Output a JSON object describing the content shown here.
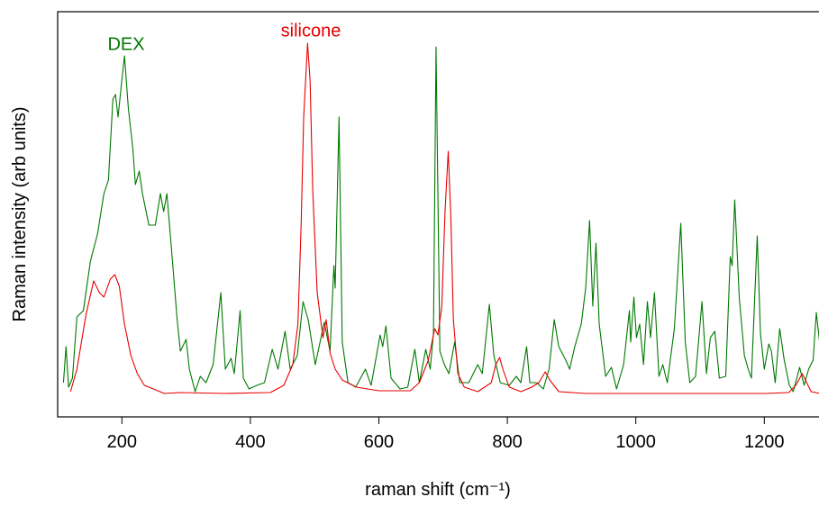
{
  "chart_data": {
    "type": "line",
    "xlabel": "raman shift (cm⁻¹)",
    "ylabel": "Raman intensity (arb units)",
    "annotations": [
      "DEX",
      "silicone"
    ],
    "xlim": [
      100,
      1286
    ],
    "ylim": [
      0,
      450
    ],
    "xticks": [
      200,
      400,
      600,
      800,
      1000,
      1200
    ],
    "series": [
      {
        "name": "DEX",
        "color": "#007800",
        "x": [
          109,
          113,
          117,
          123,
          130,
          140,
          151,
          162,
          172,
          179,
          186,
          190,
          194,
          199,
          204,
          210,
          217,
          221,
          227,
          232,
          242,
          252,
          260,
          265,
          270,
          277,
          286,
          291,
          300,
          305,
          314,
          322,
          331,
          342,
          354,
          361,
          370,
          375,
          384,
          389,
          398,
          410,
          422,
          434,
          443,
          454,
          462,
          473,
          482,
          490,
          501,
          515,
          524,
          530,
          532,
          538,
          543,
          552,
          564,
          579,
          588,
          602,
          606,
          611,
          619,
          633,
          645,
          656,
          663,
          673,
          680,
          685,
          689,
          695,
          702,
          709,
          718,
          726,
          740,
          754,
          761,
          772,
          779,
          789,
          803,
          814,
          821,
          830,
          835,
          846,
          856,
          865,
          873,
          880,
          891,
          897,
          905,
          915,
          922,
          928,
          933,
          938,
          943,
          953,
          962,
          970,
          981,
          990,
          992,
          997,
          1001,
          1006,
          1012,
          1018,
          1023,
          1029,
          1036,
          1042,
          1049,
          1060,
          1070,
          1077,
          1084,
          1093,
          1103,
          1110,
          1116,
          1123,
          1130,
          1140,
          1147,
          1150,
          1154,
          1161,
          1169,
          1175,
          1180,
          1189,
          1194,
          1200,
          1207,
          1211,
          1217,
          1224,
          1231,
          1239,
          1245,
          1255,
          1262,
          1269,
          1276,
          1281,
          1286
        ],
        "values": [
          38,
          78,
          33,
          43,
          111,
          118,
          173,
          203,
          248,
          263,
          353,
          358,
          333,
          368,
          401,
          343,
          298,
          258,
          273,
          248,
          213,
          213,
          248,
          228,
          248,
          188,
          108,
          73,
          86,
          53,
          28,
          45,
          38,
          58,
          138,
          53,
          65,
          48,
          118,
          43,
          31,
          35,
          38,
          75,
          53,
          95,
          53,
          68,
          128,
          108,
          58,
          105,
          73,
          168,
          143,
          333,
          83,
          38,
          33,
          53,
          35,
          91,
          78,
          101,
          43,
          31,
          33,
          75,
          38,
          75,
          53,
          93,
          411,
          73,
          58,
          48,
          83,
          38,
          38,
          58,
          48,
          125,
          68,
          38,
          35,
          45,
          38,
          78,
          38,
          38,
          31,
          53,
          108,
          78,
          63,
          53,
          78,
          103,
          143,
          218,
          123,
          193,
          103,
          45,
          55,
          31,
          58,
          118,
          83,
          133,
          88,
          103,
          58,
          128,
          88,
          138,
          45,
          58,
          38,
          98,
          215,
          83,
          38,
          45,
          128,
          48,
          88,
          95,
          43,
          45,
          178,
          168,
          241,
          133,
          68,
          53,
          43,
          201,
          93,
          53,
          81,
          73,
          38,
          98,
          63,
          35,
          28,
          55,
          35,
          53,
          63,
          116,
          83
        ]
      },
      {
        "name": "silicone",
        "color": "#e60000",
        "x": [
          120,
          130,
          144,
          156,
          165,
          172,
          182,
          189,
          196,
          204,
          214,
          224,
          235,
          249,
          266,
          291,
          361,
          431,
          452,
          466,
          474,
          479,
          483,
          489,
          493,
          497,
          504,
          513,
          518,
          524,
          532,
          543,
          565,
          600,
          649,
          663,
          677,
          687,
          692,
          698,
          703,
          708,
          712,
          716,
          723,
          733,
          754,
          775,
          782,
          788,
          793,
          803,
          821,
          838,
          849,
          859,
          866,
          880,
          922,
          1063,
          1203,
          1238,
          1249,
          1259,
          1266,
          1273,
          1286
        ],
        "values": [
          28,
          53,
          113,
          151,
          138,
          133,
          153,
          158,
          145,
          103,
          68,
          48,
          35,
          31,
          26,
          27,
          26,
          27,
          35,
          58,
          103,
          213,
          333,
          415,
          373,
          253,
          138,
          88,
          108,
          71,
          53,
          41,
          33,
          29,
          29,
          38,
          63,
          98,
          91,
          123,
          228,
          295,
          223,
          108,
          48,
          33,
          28,
          38,
          58,
          66,
          53,
          33,
          28,
          33,
          38,
          50,
          41,
          28,
          26,
          26,
          26,
          27,
          35,
          48,
          38,
          28,
          26
        ]
      }
    ]
  }
}
